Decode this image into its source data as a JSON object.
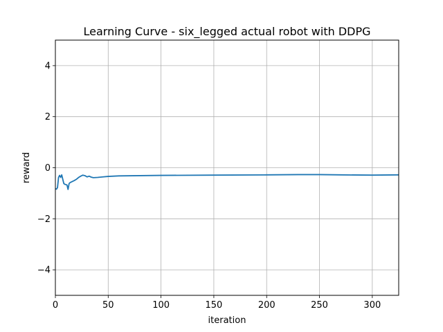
{
  "chart_data": {
    "type": "line",
    "title": "Learning Curve - six_legged actual robot with DDPG",
    "xlabel": "iteration",
    "ylabel": "reward",
    "xlim": [
      0,
      325
    ],
    "ylim": [
      -5,
      5
    ],
    "xticks": [
      0,
      50,
      100,
      150,
      200,
      250,
      300
    ],
    "yticks": [
      -4,
      -2,
      0,
      2,
      4
    ],
    "grid": true,
    "series": [
      {
        "color": "#1f77b4",
        "x": [
          0,
          1,
          2,
          3,
          4,
          5,
          6,
          7,
          8,
          9,
          10,
          11,
          12,
          13,
          14,
          15,
          16,
          18,
          20,
          22,
          24,
          26,
          28,
          30,
          32,
          34,
          36,
          40,
          45,
          50,
          60,
          80,
          100,
          150,
          200,
          230,
          250,
          270,
          300,
          325
        ],
        "y": [
          -0.82,
          -0.84,
          -0.78,
          -0.38,
          -0.3,
          -0.38,
          -0.28,
          -0.45,
          -0.62,
          -0.65,
          -0.66,
          -0.68,
          -0.85,
          -0.62,
          -0.58,
          -0.56,
          -0.54,
          -0.5,
          -0.45,
          -0.38,
          -0.33,
          -0.29,
          -0.31,
          -0.36,
          -0.33,
          -0.37,
          -0.39,
          -0.38,
          -0.36,
          -0.34,
          -0.32,
          -0.31,
          -0.3,
          -0.29,
          -0.28,
          -0.27,
          -0.27,
          -0.28,
          -0.29,
          -0.28
        ]
      }
    ]
  }
}
